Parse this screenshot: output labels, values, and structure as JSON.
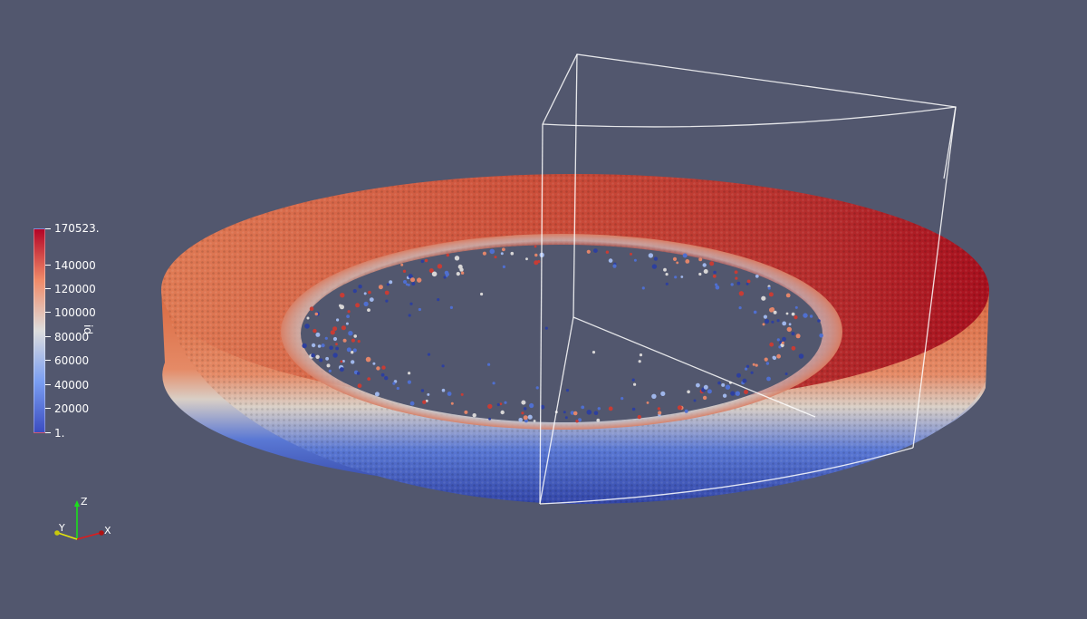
{
  "scalar_bar": {
    "title": "id",
    "max_label": "170523.",
    "min_label": "1.",
    "tick_labels": [
      "140000",
      "120000",
      "100000",
      "80000",
      "60000",
      "40000",
      "20000"
    ],
    "colors": {
      "low": "#3b4cc0",
      "mid": "#dddddd",
      "high": "#b40426"
    }
  },
  "axes": {
    "x_label": "X",
    "y_label": "Y",
    "z_label": "Z",
    "x_color": "#e01b1b",
    "y_color": "#e6e60c",
    "z_color": "#1be01b"
  },
  "scene": {
    "background": "#52576e",
    "outline_color": "#ffffff"
  }
}
